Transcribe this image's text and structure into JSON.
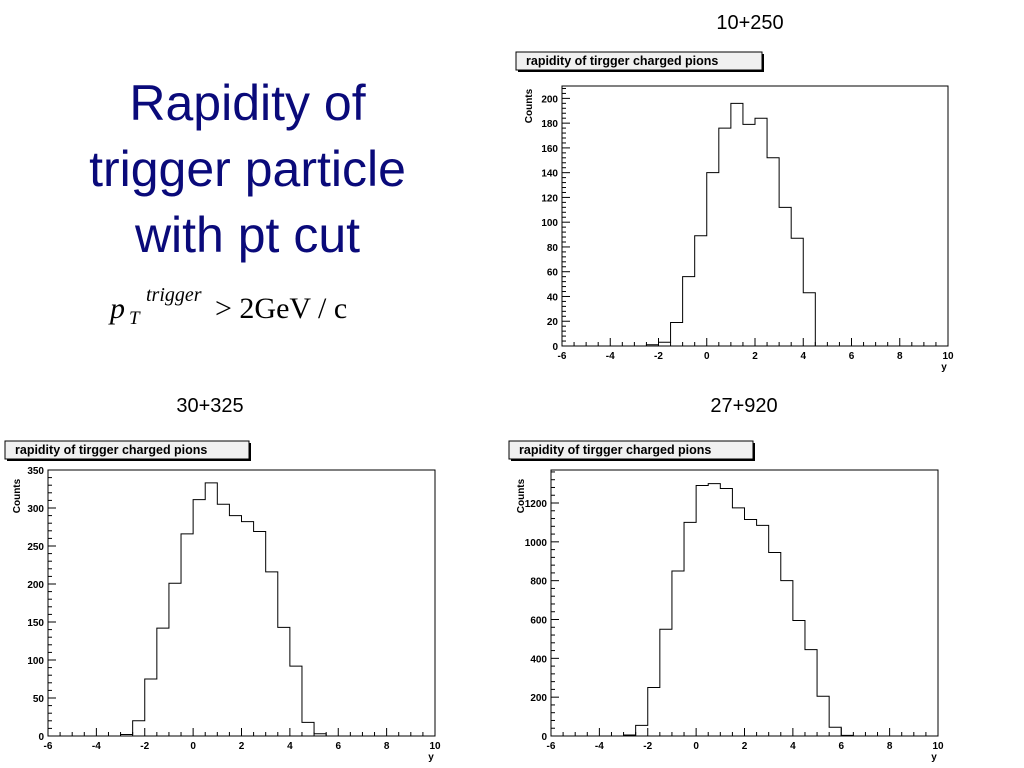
{
  "slide": {
    "title_lines": [
      "Rapidity of",
      "trigger particle",
      "with pt cut"
    ],
    "formula": {
      "symbol": "p",
      "subscript": "T",
      "superscript": "trigger",
      "relation": "> 2GeV / c"
    }
  },
  "chart_data": [
    {
      "type": "bar",
      "run_label": "10+250",
      "title": "rapidity of tirgger charged pions",
      "xlabel": "y",
      "ylabel": "Counts",
      "xlim": [
        -6,
        10
      ],
      "ylim": [
        0,
        210
      ],
      "x_ticks": [
        "-6",
        "-4",
        "-2",
        "0",
        "2",
        "4",
        "6",
        "8",
        "10"
      ],
      "y_ticks": [
        "0",
        "20",
        "40",
        "60",
        "80",
        "100",
        "120",
        "140",
        "160",
        "180",
        "200"
      ],
      "bin_edges": [
        -2.5,
        -2,
        -1.5,
        -1,
        -0.5,
        0,
        0.5,
        1,
        1.5,
        2,
        2.5,
        3,
        3.5,
        4,
        4.5,
        5
      ],
      "values": [
        1,
        3,
        19,
        56,
        89,
        140,
        176,
        196,
        179,
        184,
        152,
        112,
        87,
        43,
        0
      ],
      "grid": false,
      "legend": "none"
    },
    {
      "type": "bar",
      "run_label": "30+325",
      "title": "rapidity of tirgger charged pions",
      "xlabel": "y",
      "ylabel": "Counts",
      "xlim": [
        -6,
        10
      ],
      "ylim": [
        0,
        350
      ],
      "x_ticks": [
        "-6",
        "-4",
        "-2",
        "0",
        "2",
        "4",
        "6",
        "8",
        "10"
      ],
      "y_ticks": [
        "0",
        "50",
        "100",
        "150",
        "200",
        "250",
        "300",
        "350"
      ],
      "bin_edges": [
        -3,
        -2.5,
        -2,
        -1.5,
        -1,
        -0.5,
        0,
        0.5,
        1,
        1.5,
        2,
        2.5,
        3,
        3.5,
        4,
        4.5,
        5,
        5.5
      ],
      "values": [
        2,
        20,
        75,
        142,
        201,
        266,
        311,
        333,
        305,
        290,
        282,
        269,
        216,
        143,
        92,
        18,
        3
      ],
      "grid": false,
      "legend": "none"
    },
    {
      "type": "bar",
      "run_label": "27+920",
      "title": "rapidity of tirgger charged pions",
      "xlabel": "y",
      "ylabel": "Counts",
      "xlim": [
        -6,
        10
      ],
      "ylim": [
        0,
        1370
      ],
      "x_ticks": [
        "-6",
        "-4",
        "-2",
        "0",
        "2",
        "4",
        "6",
        "8",
        "10"
      ],
      "y_ticks": [
        "0",
        "200",
        "400",
        "600",
        "800",
        "1000",
        "1200"
      ],
      "bin_edges": [
        -3,
        -2.5,
        -2,
        -1.5,
        -1,
        -0.5,
        0,
        0.5,
        1,
        1.5,
        2,
        2.5,
        3,
        3.5,
        4,
        4.5,
        5,
        5.5,
        6,
        6.5
      ],
      "values": [
        5,
        55,
        250,
        550,
        850,
        1100,
        1290,
        1300,
        1275,
        1175,
        1115,
        1085,
        945,
        800,
        595,
        445,
        205,
        45,
        3
      ],
      "grid": false,
      "legend": "none"
    }
  ]
}
